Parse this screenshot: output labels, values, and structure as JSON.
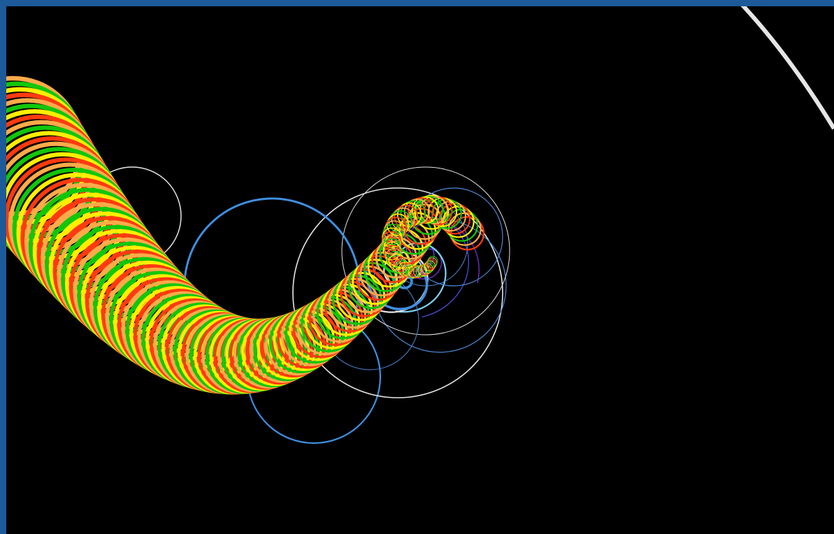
{
  "window": {
    "frame_color": "#1d5a9a",
    "background_color": "#000000"
  },
  "artwork": {
    "description_label": "",
    "palette": {
      "red": "#ff3a10",
      "yellow": "#ffee00",
      "orange": "#ffaa4a",
      "green": "#12c70b",
      "blue": "#3f8fe0",
      "light_blue": "#7fd3f5",
      "white": "#e6e6e6",
      "purple": "#7a2fd0",
      "indigo": "#4a4fe0",
      "steel_blue": "#4a8ad8"
    }
  }
}
